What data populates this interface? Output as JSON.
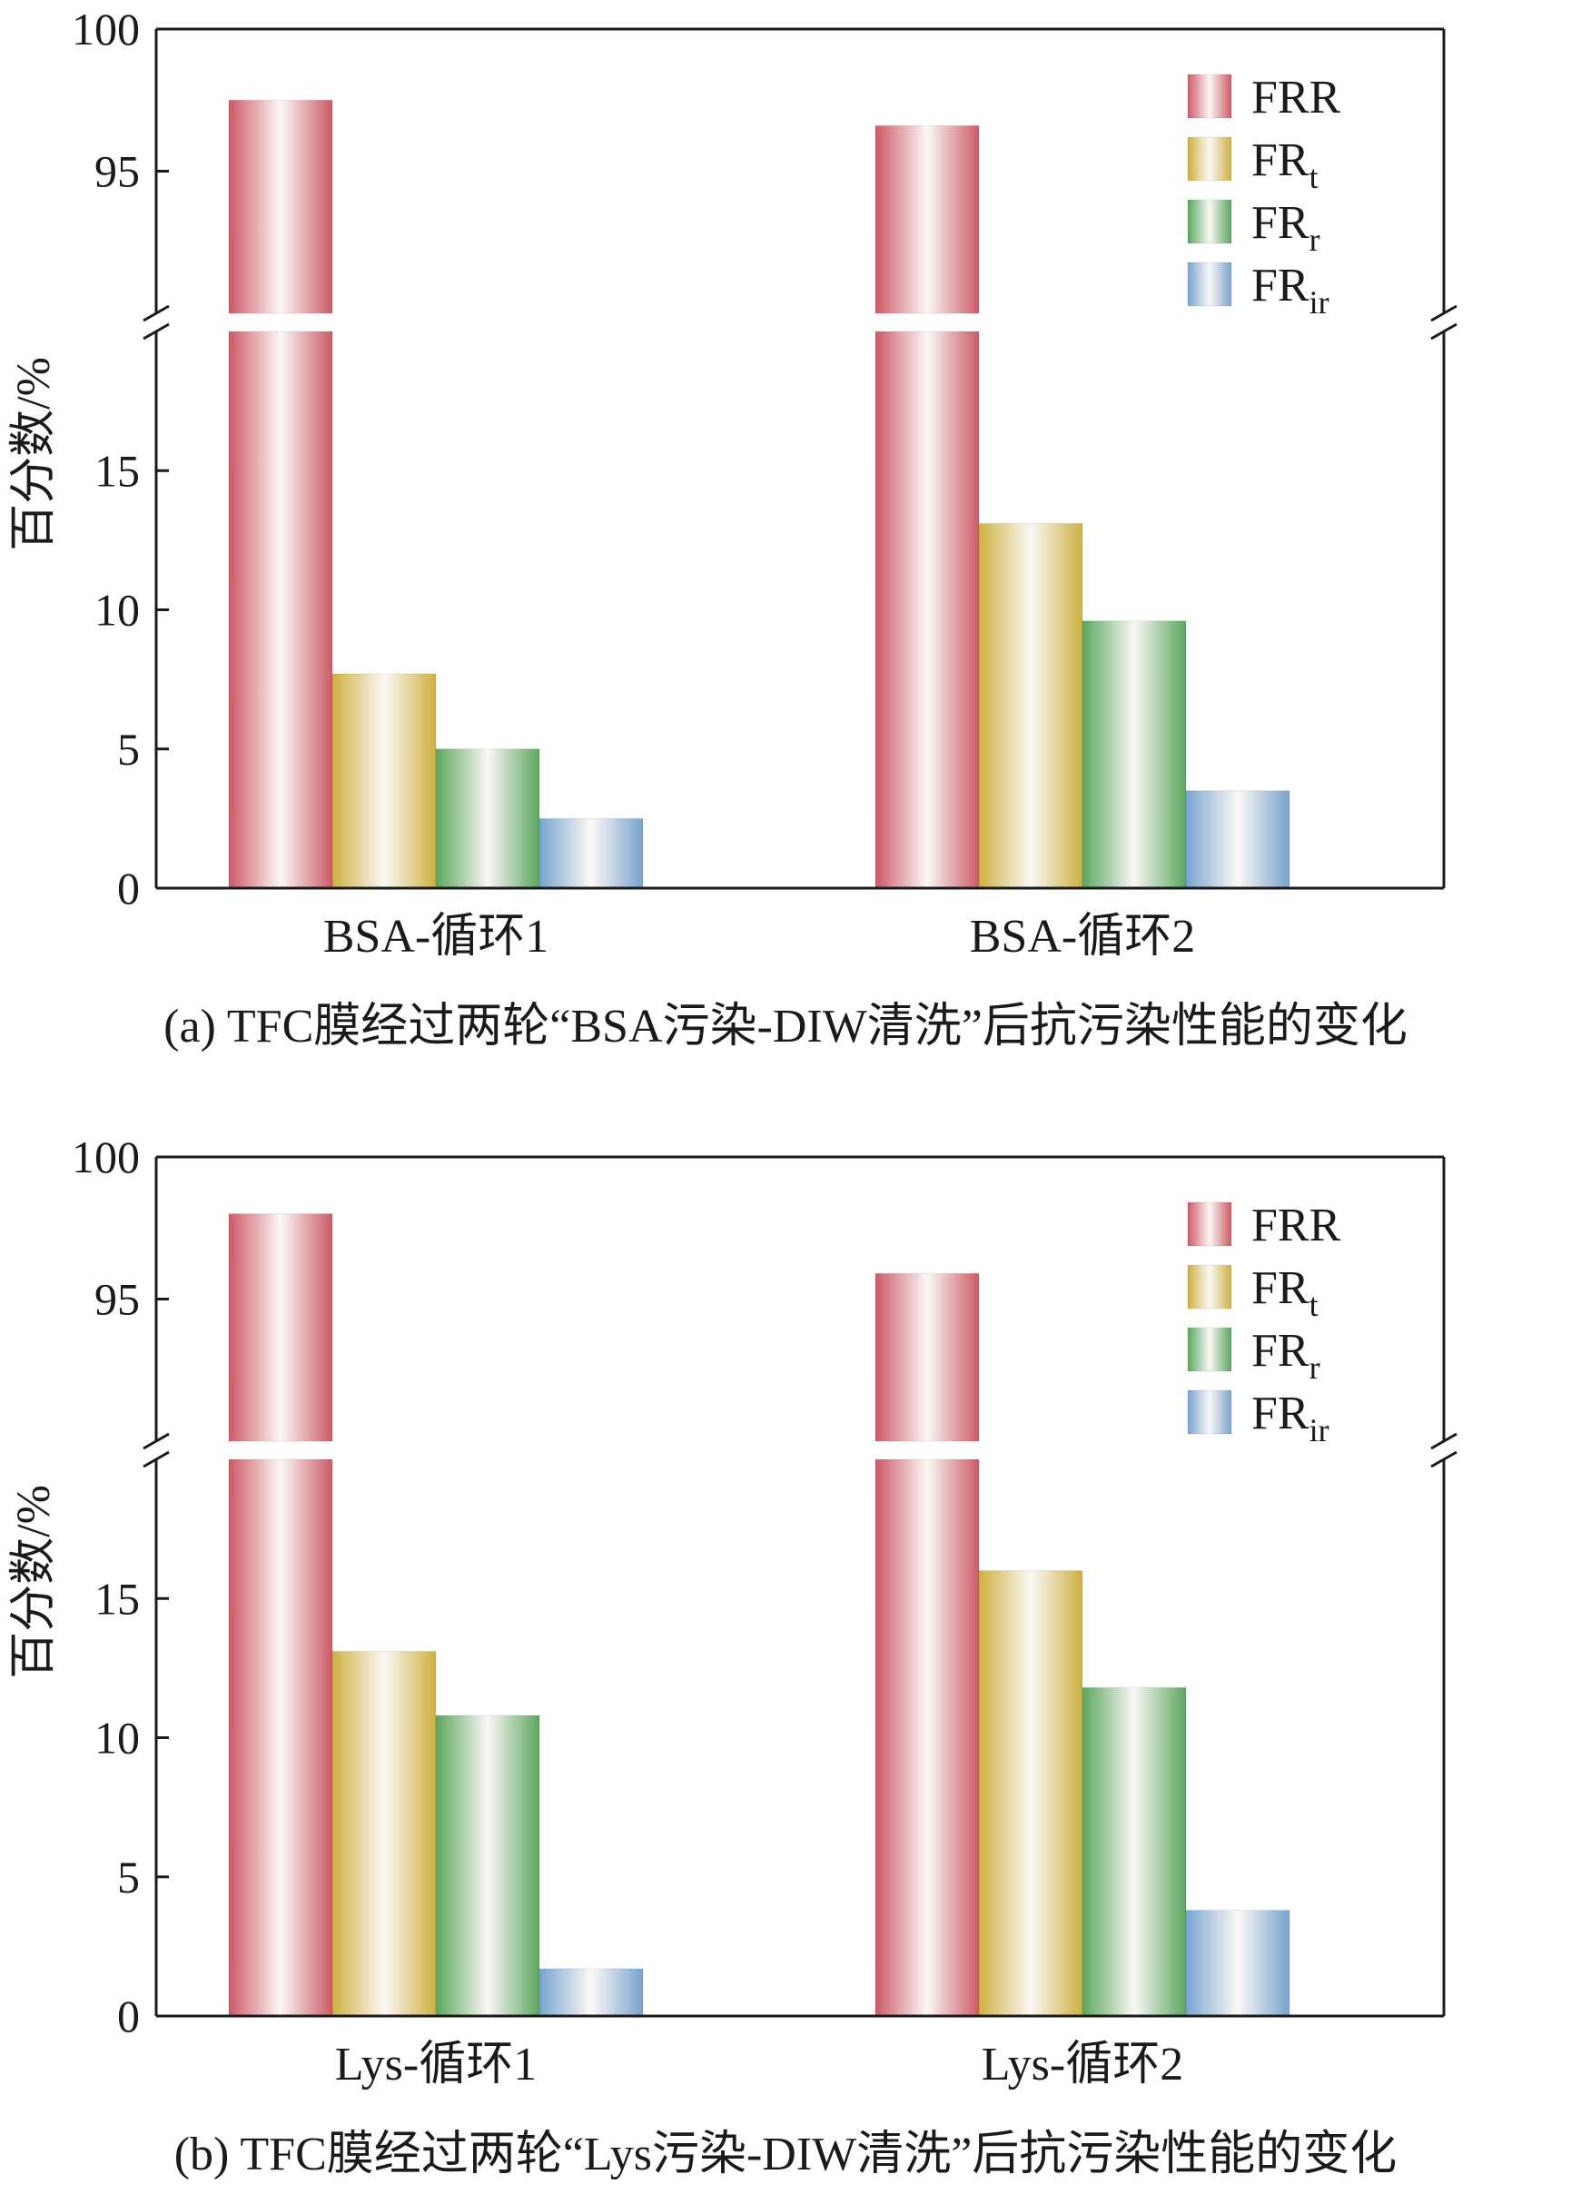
{
  "colors": {
    "FRR": "#cc5a66",
    "FRt": "#ceb140",
    "FRr": "#5aa65e",
    "FRir": "#78a4cf"
  },
  "chart_data": [
    {
      "type": "bar",
      "caption": "(a) TFC膜经过两轮“BSA污染-DIW清洗”后抗污染性能的变化",
      "ylabel": "百分数/%",
      "y_axis_break": {
        "lower": [
          0,
          20
        ],
        "upper": [
          90,
          100
        ]
      },
      "yticks_lower": [
        0,
        5,
        10,
        15
      ],
      "yticks_upper": [
        95,
        100
      ],
      "legend_position": "top-right",
      "categories": [
        "BSA-循环1",
        "BSA-循环2"
      ],
      "series": [
        {
          "name": "FRR",
          "sub": "",
          "values": [
            97.5,
            96.6
          ]
        },
        {
          "name": "FR",
          "sub": "t",
          "values": [
            7.7,
            13.1
          ]
        },
        {
          "name": "FR",
          "sub": "r",
          "values": [
            5.0,
            9.6
          ]
        },
        {
          "name": "FR",
          "sub": "ir",
          "values": [
            2.5,
            3.5
          ]
        }
      ]
    },
    {
      "type": "bar",
      "caption": "(b) TFC膜经过两轮“Lys污染-DIW清洗”后抗污染性能的变化",
      "ylabel": "百分数/%",
      "y_axis_break": {
        "lower": [
          0,
          20
        ],
        "upper": [
          90,
          100
        ]
      },
      "yticks_lower": [
        0,
        5,
        10,
        15
      ],
      "yticks_upper": [
        95,
        100
      ],
      "legend_position": "top-right",
      "categories": [
        "Lys-循环1",
        "Lys-循环2"
      ],
      "series": [
        {
          "name": "FRR",
          "sub": "",
          "values": [
            98.0,
            95.9
          ]
        },
        {
          "name": "FR",
          "sub": "t",
          "values": [
            13.1,
            16.0
          ]
        },
        {
          "name": "FR",
          "sub": "r",
          "values": [
            10.8,
            11.8
          ]
        },
        {
          "name": "FR",
          "sub": "ir",
          "values": [
            1.7,
            3.8
          ]
        }
      ]
    }
  ]
}
